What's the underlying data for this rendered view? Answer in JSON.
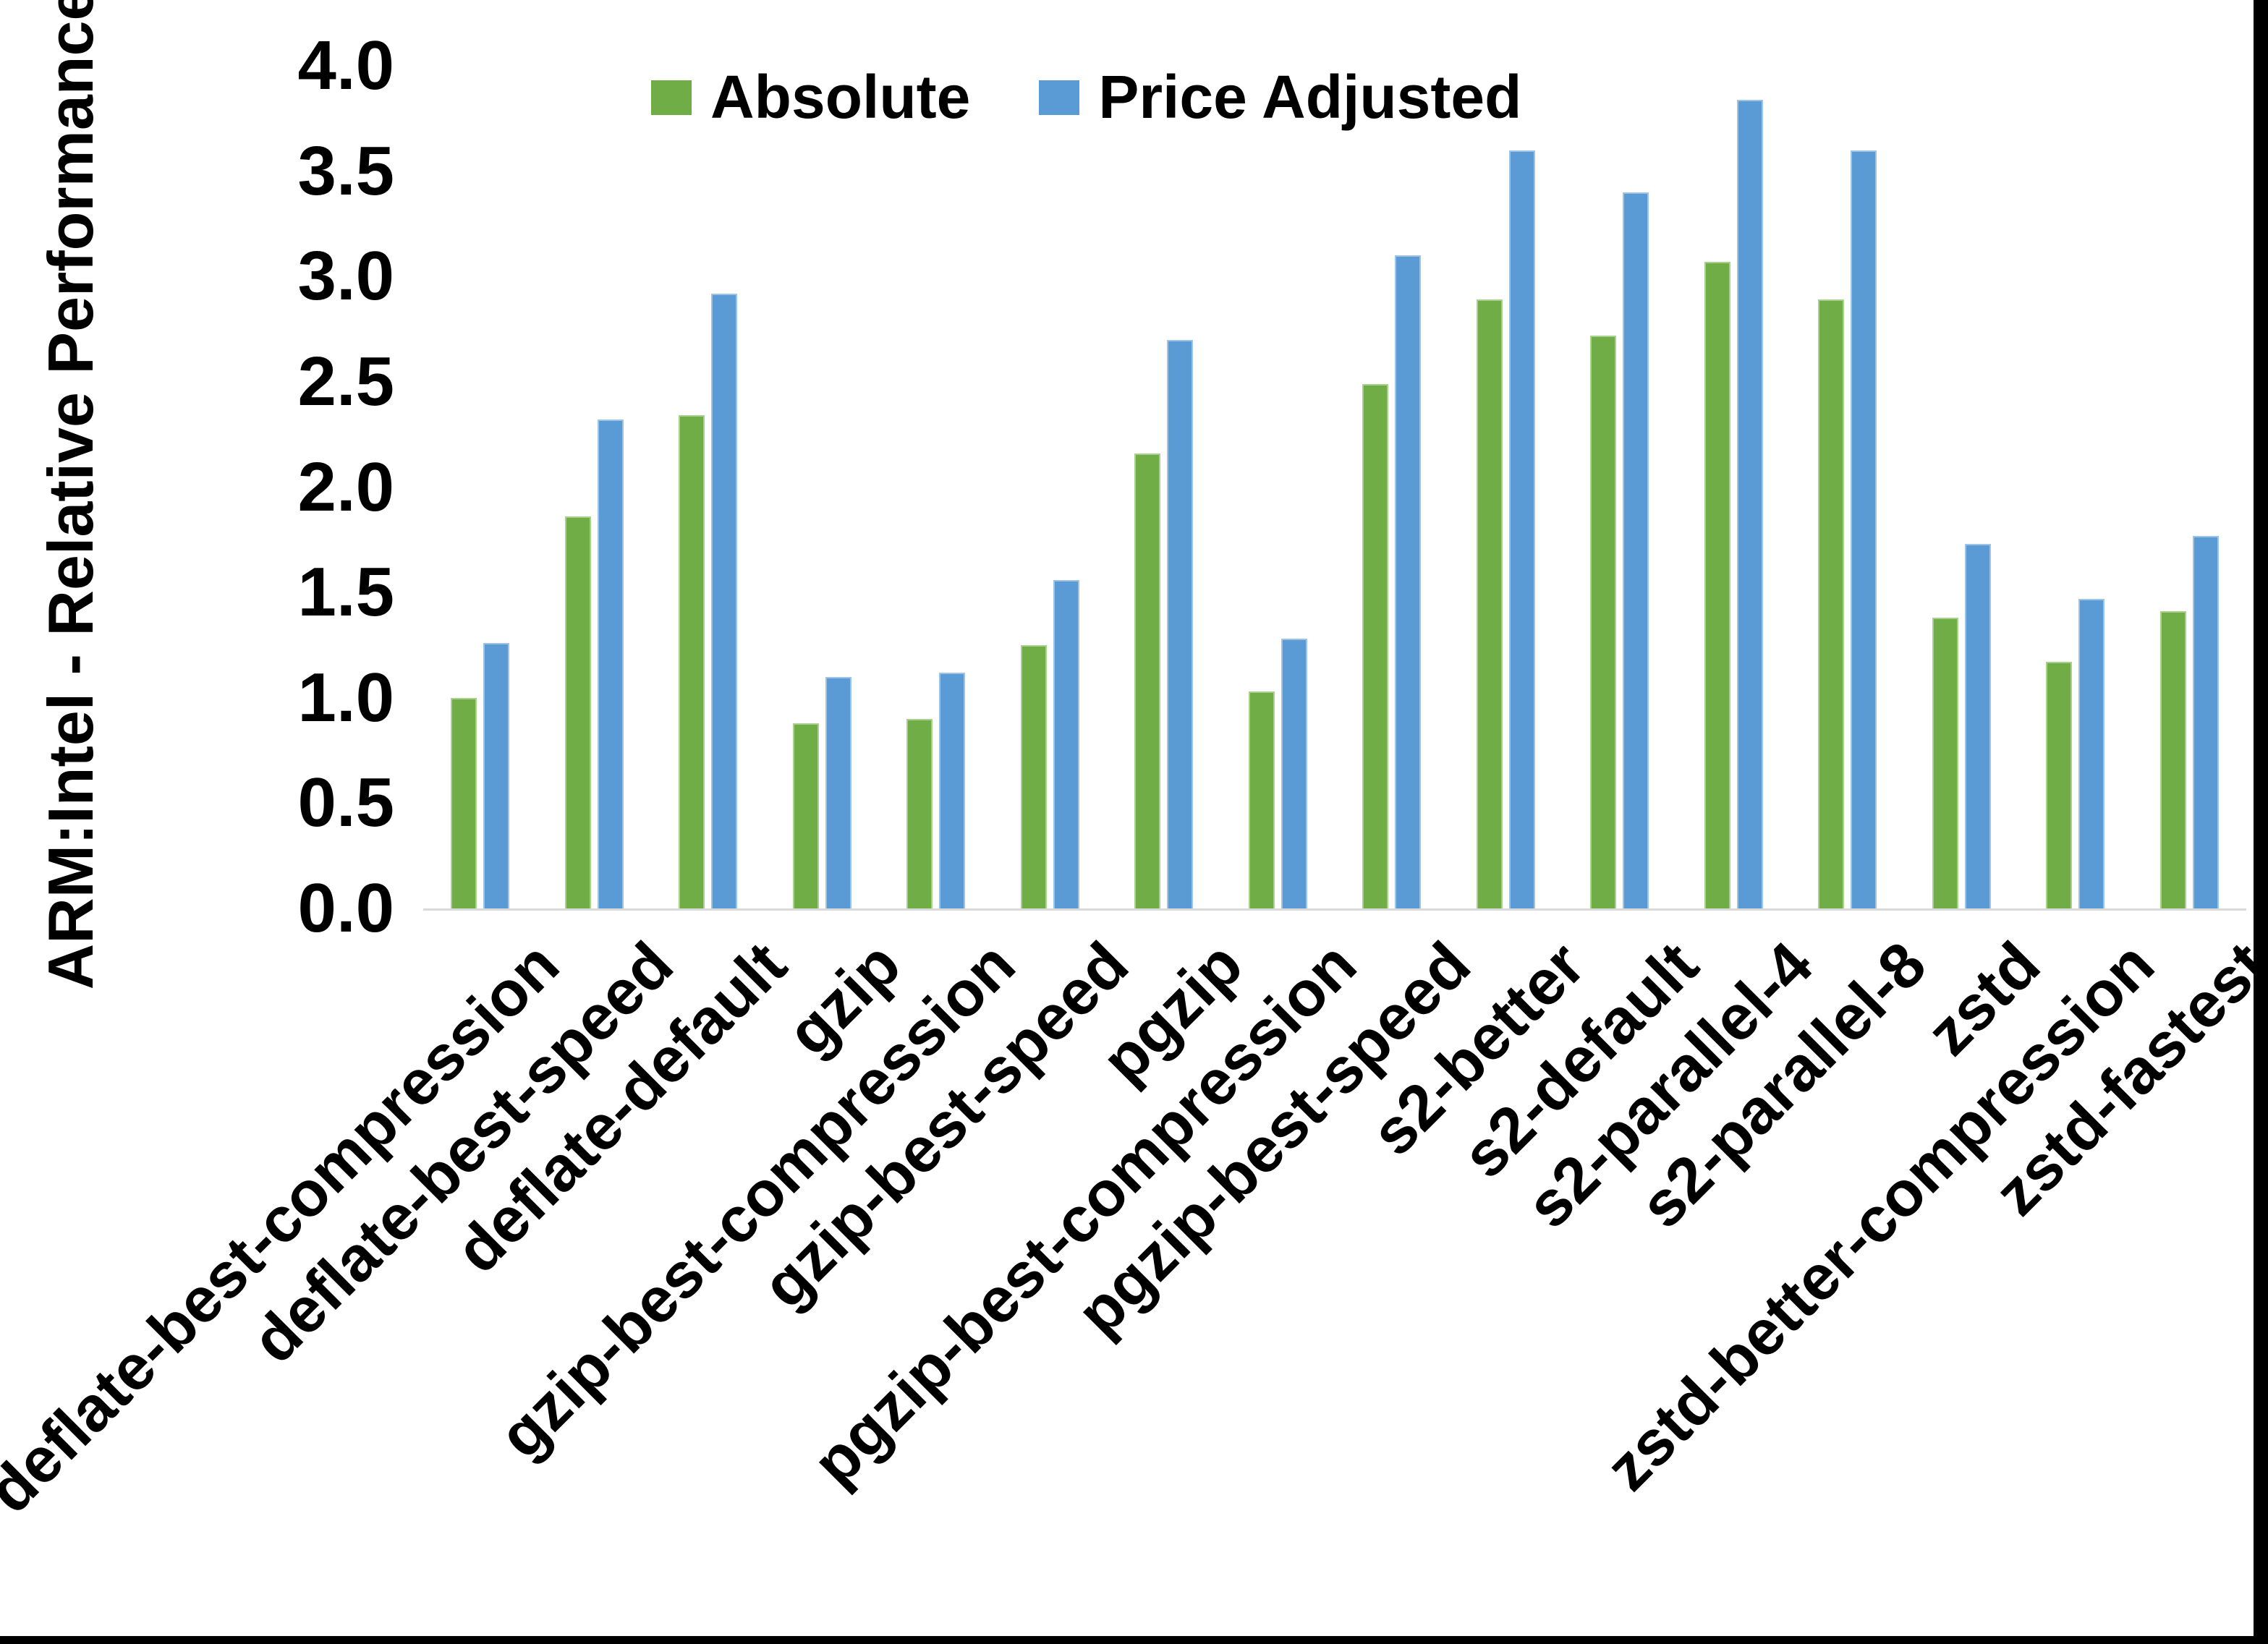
{
  "chart_data": {
    "type": "bar",
    "title": "",
    "xlabel": "",
    "ylabel": "ARM:Intel - Relative Performance",
    "ylim": [
      0.0,
      4.0
    ],
    "ytick_step": 0.5,
    "ytick_labels_top_to_bottom": [
      "4.0",
      "3.5",
      "3.0",
      "2.5",
      "2.0",
      "1.5",
      "1.0",
      "0.5",
      "0.0"
    ],
    "grid": false,
    "legend_position": "top-center",
    "categories": [
      "deflate-best-compression",
      "deflate-best-speed",
      "deflate-default",
      "gzip",
      "gzip-best-compression",
      "gzip-best-speed",
      "pgzip",
      "pgzip-best-compression",
      "pgzip-best-speed",
      "s2-better",
      "s2-default",
      "s2-parallel-4",
      "s2-parallel-8",
      "zstd",
      "zstd-better-compression",
      "zstd-fastest"
    ],
    "series": [
      {
        "name": "Absolute",
        "color": "#70AD47",
        "values": [
          1.0,
          1.86,
          2.34,
          0.88,
          0.9,
          1.25,
          2.16,
          1.03,
          2.49,
          2.89,
          2.72,
          3.07,
          2.89,
          1.38,
          1.17,
          1.41
        ]
      },
      {
        "name": "Price Adjusted",
        "color": "#5B9BD5",
        "values": [
          1.26,
          2.32,
          2.92,
          1.1,
          1.12,
          1.56,
          2.7,
          1.28,
          3.1,
          3.6,
          3.4,
          3.84,
          3.6,
          1.73,
          1.47,
          1.77
        ]
      }
    ],
    "axis_line_color": "#D9D9D9"
  }
}
